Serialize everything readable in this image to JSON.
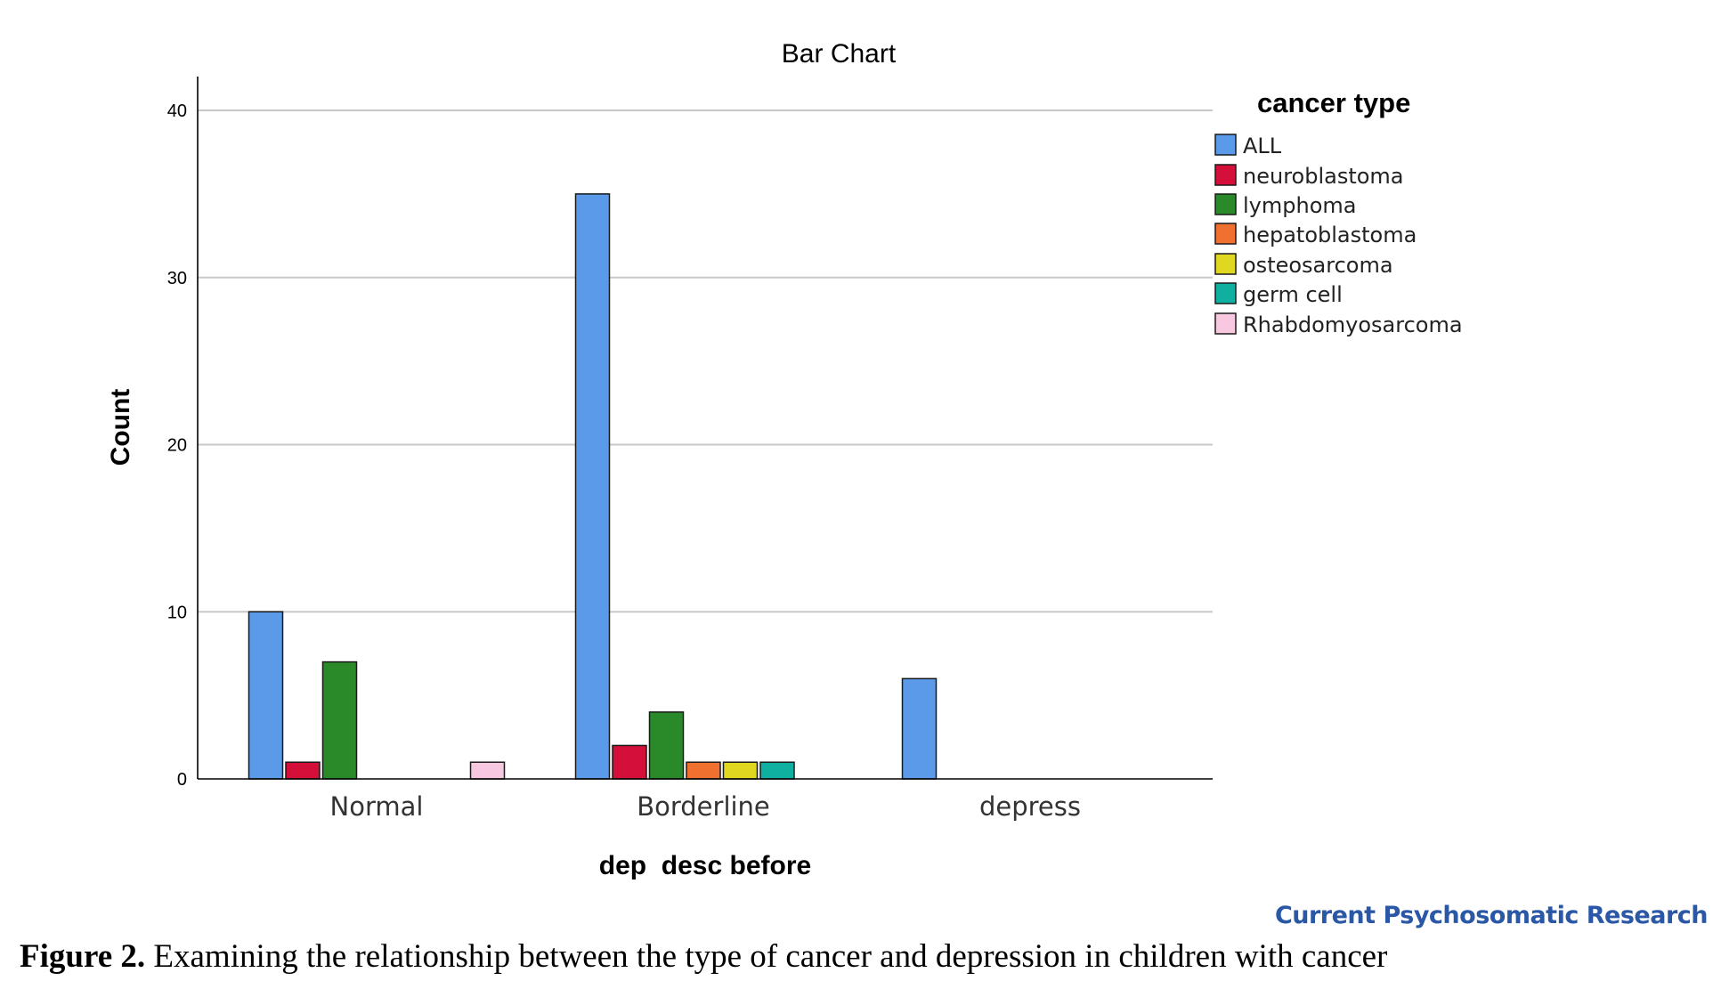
{
  "chart_data": {
    "type": "bar",
    "title": "Bar Chart",
    "xlabel": "dep  desc before",
    "ylabel": "Count",
    "categories": [
      "Normal",
      "Borderline",
      "depress"
    ],
    "ylim": [
      0,
      40
    ],
    "yticks": [
      0,
      10,
      20,
      30,
      40
    ],
    "grid": true,
    "legend_title": "cancer type",
    "legend_position": "right",
    "series": [
      {
        "name": "ALL",
        "color": "#5b9ae8",
        "values": [
          10,
          35,
          6
        ]
      },
      {
        "name": "neuroblastoma",
        "color": "#d4103a",
        "values": [
          1,
          2,
          0
        ]
      },
      {
        "name": "lymphoma",
        "color": "#2a8a2a",
        "values": [
          7,
          4,
          0
        ]
      },
      {
        "name": "hepatoblastoma",
        "color": "#f07030",
        "values": [
          0,
          1,
          0
        ]
      },
      {
        "name": "osteosarcoma",
        "color": "#e0d820",
        "values": [
          0,
          1,
          0
        ]
      },
      {
        "name": "germ cell",
        "color": "#10b0a0",
        "values": [
          0,
          1,
          0
        ]
      },
      {
        "name": "Rhabdomyosarcoma",
        "color": "#f8c8e0",
        "values": [
          1,
          0,
          0
        ]
      }
    ]
  },
  "watermark": "Current Psychosomatic Research",
  "caption": {
    "label": "Figure 2.",
    "text": " Examining the relationship between the type of cancer and depression in children with cancer"
  }
}
